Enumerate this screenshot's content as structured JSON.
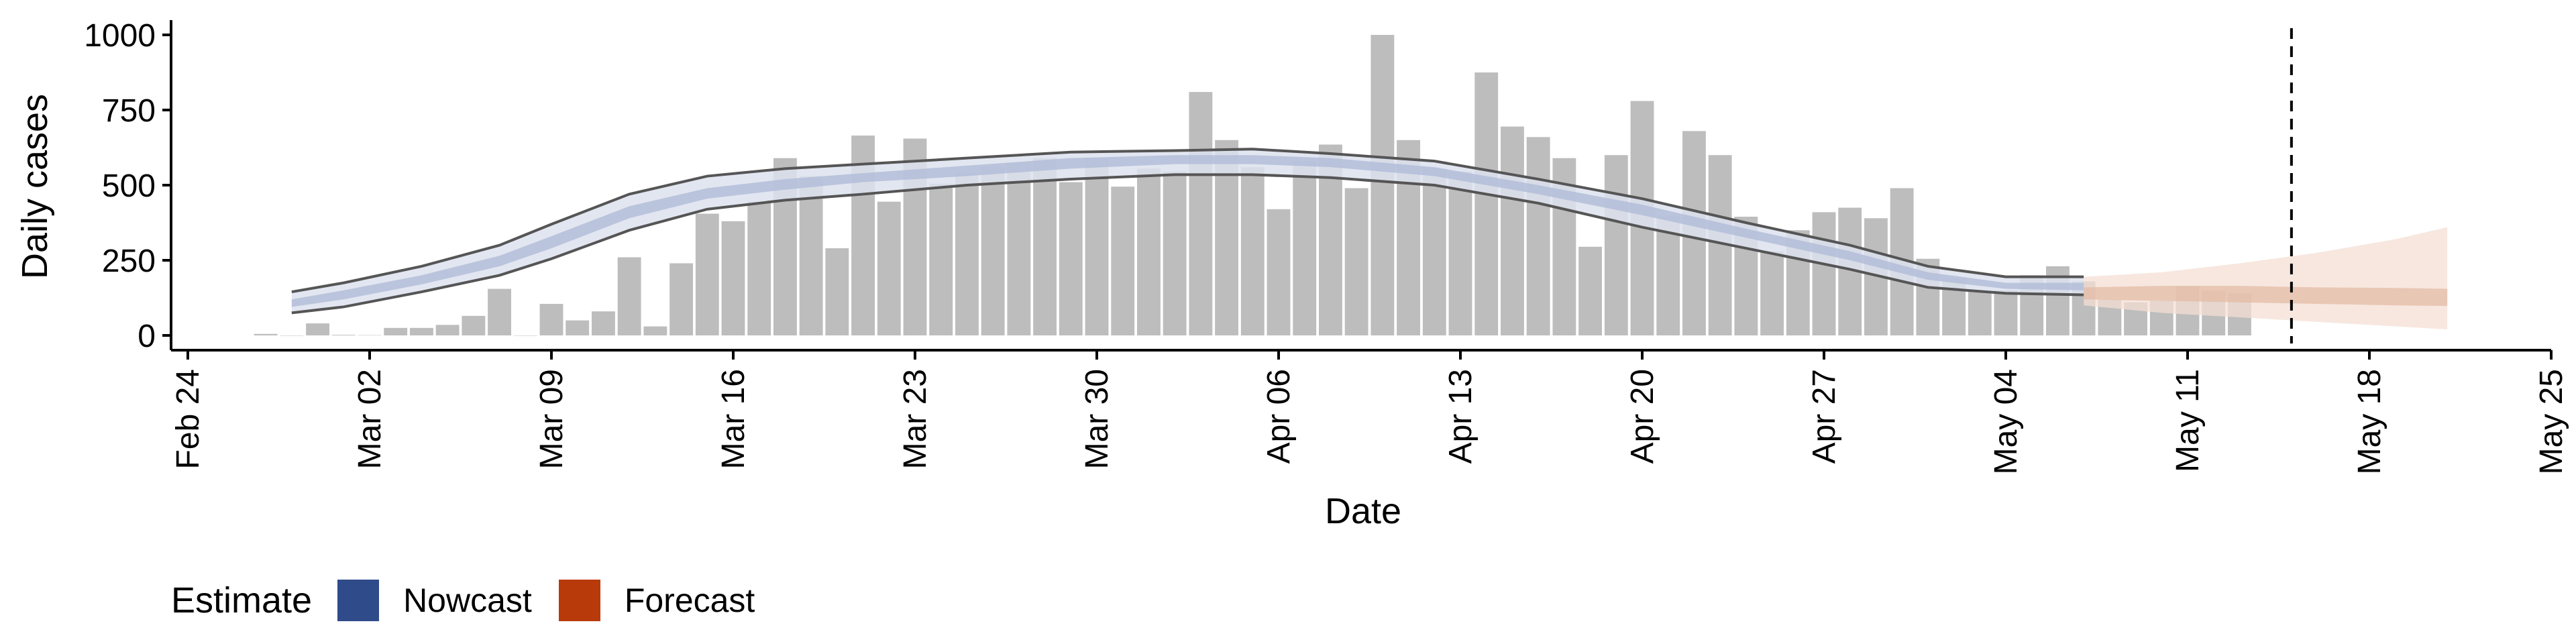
{
  "chart_data": {
    "type": "bar",
    "xlabel": "Date",
    "ylabel": "Daily cases",
    "xlim": [
      "2020-02-24",
      "2020-05-25"
    ],
    "ylim": [
      0,
      1000
    ],
    "x_ticks": [
      "Feb 24",
      "Mar 02",
      "Mar 09",
      "Mar 16",
      "Mar 23",
      "Mar 30",
      "Apr 06",
      "Apr 13",
      "Apr 20",
      "Apr 27",
      "May 04",
      "May 11",
      "May 18",
      "May 25"
    ],
    "y_ticks": [
      0,
      250,
      500,
      750,
      1000
    ],
    "reference_line_date": "2020-05-15",
    "reported_cases": {
      "start_date": "2020-02-27",
      "values": [
        5,
        0,
        40,
        2,
        1,
        25,
        25,
        35,
        65,
        155,
        0,
        105,
        50,
        80,
        260,
        30,
        240,
        405,
        380,
        445,
        590,
        530,
        290,
        665,
        445,
        655,
        505,
        540,
        560,
        575,
        590,
        510,
        590,
        495,
        555,
        545,
        810,
        650,
        560,
        420,
        580,
        635,
        490,
        1000,
        650,
        555,
        545,
        875,
        695,
        660,
        590,
        295,
        600,
        780,
        400,
        680,
        600,
        395,
        280,
        350,
        410,
        425,
        390,
        490,
        255,
        190,
        145,
        150,
        200,
        230,
        180,
        120,
        110,
        115,
        165,
        150,
        140
      ]
    },
    "estimate": {
      "nowcast": {
        "dates": [
          "2020-02-28",
          "2020-03-01",
          "2020-03-04",
          "2020-03-07",
          "2020-03-09",
          "2020-03-12",
          "2020-03-15",
          "2020-03-18",
          "2020-03-21",
          "2020-03-25",
          "2020-03-29",
          "2020-04-02",
          "2020-04-05",
          "2020-04-08",
          "2020-04-12",
          "2020-04-16",
          "2020-04-20",
          "2020-04-24",
          "2020-04-28",
          "2020-05-01",
          "2020-05-04",
          "2020-05-07"
        ],
        "outer_upper": [
          145,
          175,
          230,
          300,
          370,
          470,
          530,
          555,
          570,
          590,
          610,
          615,
          620,
          605,
          580,
          520,
          455,
          375,
          300,
          230,
          195,
          195
        ],
        "inner_upper": [
          120,
          150,
          200,
          265,
          330,
          430,
          490,
          520,
          540,
          565,
          590,
          600,
          600,
          590,
          560,
          500,
          435,
          355,
          280,
          210,
          175,
          175
        ],
        "inner_lower": [
          95,
          120,
          170,
          230,
          290,
          390,
          455,
          485,
          510,
          530,
          555,
          570,
          570,
          560,
          530,
          470,
          400,
          325,
          250,
          185,
          155,
          150
        ],
        "outer_lower": [
          75,
          95,
          145,
          200,
          255,
          350,
          420,
          450,
          470,
          500,
          520,
          535,
          535,
          525,
          500,
          440,
          360,
          290,
          220,
          160,
          140,
          135
        ]
      },
      "forecast": {
        "dates": [
          "2020-05-07",
          "2020-05-10",
          "2020-05-13",
          "2020-05-16",
          "2020-05-19",
          "2020-05-21"
        ],
        "outer_upper": [
          195,
          210,
          240,
          275,
          320,
          360
        ],
        "inner_upper": [
          160,
          165,
          165,
          160,
          158,
          155
        ],
        "inner_lower": [
          120,
          115,
          110,
          105,
          100,
          98
        ],
        "outer_lower": [
          100,
          75,
          60,
          45,
          30,
          20
        ]
      }
    },
    "legend": {
      "title": "Estimate",
      "placement": "bottom-left",
      "items": [
        {
          "label": "Nowcast",
          "color": "#2f4b8a"
        },
        {
          "label": "Forecast",
          "color": "#b83a0a"
        }
      ]
    },
    "colors": {
      "bars": "#bdbdbd",
      "nowcast_outer": "#dde2ee",
      "nowcast_inner": "#b3bdd8",
      "forecast_outer": "#f4dfd4",
      "forecast_inner": "#e2b9a3",
      "band_edge": "#555555"
    },
    "grid": false
  }
}
